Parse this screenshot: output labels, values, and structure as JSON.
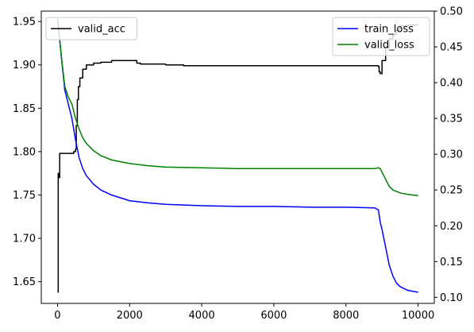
{
  "chart_data": {
    "type": "line",
    "title": "",
    "xlabel": "",
    "ylabel": "",
    "y2label": "",
    "grid": false,
    "xlim": [
      -450,
      10450
    ],
    "ylim_left": [
      1.625,
      1.962
    ],
    "ylim_right": [
      0.0915,
      0.5
    ],
    "x_ticks": [
      0,
      2000,
      4000,
      6000,
      8000,
      10000
    ],
    "x_tick_labels": [
      "0",
      "2000",
      "4000",
      "6000",
      "8000",
      "10000"
    ],
    "y_left_ticks": [
      1.65,
      1.7,
      1.75,
      1.8,
      1.85,
      1.9,
      1.95
    ],
    "y_left_tick_labels": [
      "1.65",
      "1.70",
      "1.75",
      "1.80",
      "1.85",
      "1.90",
      "1.95"
    ],
    "y_right_ticks": [
      0.1,
      0.15,
      0.2,
      0.25,
      0.3,
      0.35,
      0.4,
      0.45,
      0.5
    ],
    "y_right_tick_labels": [
      "0.10",
      "0.15",
      "0.20",
      "0.25",
      "0.30",
      "0.35",
      "0.40",
      "0.45",
      "0.50"
    ],
    "legends": [
      {
        "placement": "upper-left",
        "entries": [
          {
            "label": "valid_acc",
            "color": "#000000"
          }
        ]
      },
      {
        "placement": "upper-right",
        "entries": [
          {
            "label": "train_loss",
            "color": "#0000ff"
          },
          {
            "label": "valid_loss",
            "color": "#008000"
          }
        ]
      }
    ],
    "series": [
      {
        "name": "valid_acc",
        "axis": "left",
        "color": "#000000",
        "step": true,
        "x": [
          0,
          20,
          40,
          60,
          100,
          200,
          300,
          400,
          450,
          500,
          520,
          550,
          580,
          620,
          700,
          800,
          1000,
          1200,
          1500,
          2000,
          2200,
          2300,
          2500,
          3000,
          3500,
          4000,
          6000,
          8000,
          8500,
          8800,
          8900,
          8920,
          8950,
          9000,
          9100,
          9200,
          9300,
          9400,
          9500,
          9700,
          10000
        ],
        "y": [
          1.638,
          1.775,
          1.77,
          1.798,
          1.798,
          1.798,
          1.798,
          1.798,
          1.8,
          1.803,
          1.83,
          1.86,
          1.875,
          1.885,
          1.895,
          1.9,
          1.902,
          1.903,
          1.905,
          1.905,
          1.902,
          1.901,
          1.901,
          1.9,
          1.899,
          1.899,
          1.899,
          1.899,
          1.899,
          1.899,
          1.898,
          1.892,
          1.89,
          1.905,
          1.92,
          1.93,
          1.935,
          1.94,
          1.945,
          1.946,
          1.946
        ]
      },
      {
        "name": "train_loss",
        "axis": "right",
        "color": "#0000ff",
        "x": [
          0,
          100,
          200,
          300,
          400,
          500,
          600,
          700,
          800,
          1000,
          1200,
          1500,
          2000,
          2500,
          3000,
          4000,
          5000,
          6000,
          7000,
          8000,
          8800,
          8900,
          8950,
          9000,
          9100,
          9200,
          9300,
          9400,
          9500,
          9700,
          10000
        ],
        "y": [
          0.49,
          0.44,
          0.39,
          0.37,
          0.35,
          0.32,
          0.295,
          0.28,
          0.27,
          0.258,
          0.25,
          0.243,
          0.235,
          0.232,
          0.23,
          0.228,
          0.227,
          0.227,
          0.226,
          0.226,
          0.225,
          0.222,
          0.205,
          0.195,
          0.17,
          0.145,
          0.13,
          0.12,
          0.115,
          0.11,
          0.107
        ]
      },
      {
        "name": "valid_loss",
        "axis": "right",
        "color": "#008000",
        "x": [
          0,
          100,
          200,
          300,
          400,
          500,
          600,
          700,
          800,
          1000,
          1200,
          1500,
          2000,
          2500,
          3000,
          4000,
          5000,
          6000,
          7000,
          8000,
          8800,
          8900,
          8950,
          9000,
          9100,
          9200,
          9300,
          9500,
          9700,
          10000
        ],
        "y": [
          0.49,
          0.44,
          0.395,
          0.38,
          0.37,
          0.35,
          0.335,
          0.323,
          0.315,
          0.305,
          0.298,
          0.292,
          0.287,
          0.284,
          0.282,
          0.281,
          0.28,
          0.28,
          0.28,
          0.28,
          0.28,
          0.281,
          0.28,
          0.275,
          0.265,
          0.255,
          0.25,
          0.246,
          0.244,
          0.242
        ]
      }
    ]
  }
}
